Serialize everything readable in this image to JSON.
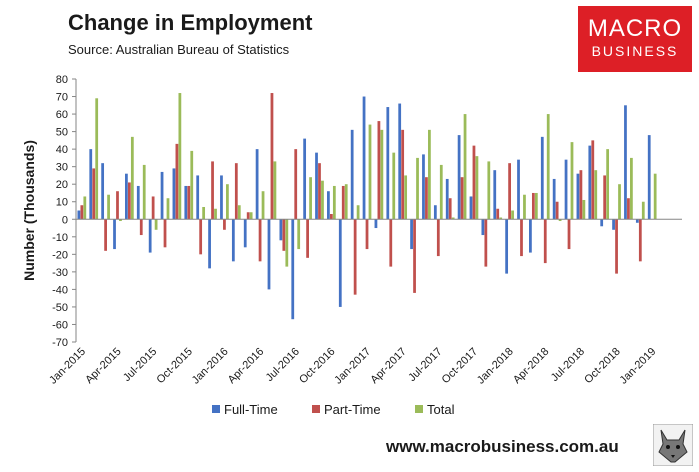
{
  "header": {
    "title": "Change in Employment",
    "source": "Source: Australian Bureau of Statistics"
  },
  "logo": {
    "line1": "MACRO",
    "line2": "BUSINESS"
  },
  "footer": {
    "url": "www.macrobusiness.com.au"
  },
  "chart_data": {
    "type": "bar",
    "title": "Change in Employment",
    "ylabel": "Number (Thousands)",
    "xlabel": "",
    "ylim": [
      -70,
      80
    ],
    "yticks": [
      -70,
      -60,
      -50,
      -40,
      -30,
      -20,
      -10,
      0,
      10,
      20,
      30,
      40,
      50,
      60,
      70,
      80
    ],
    "legend": "bottom",
    "categories": [
      "Jan-2015",
      "Feb-2015",
      "Mar-2015",
      "Apr-2015",
      "May-2015",
      "Jun-2015",
      "Jul-2015",
      "Aug-2015",
      "Sep-2015",
      "Oct-2015",
      "Nov-2015",
      "Dec-2015",
      "Jan-2016",
      "Feb-2016",
      "Mar-2016",
      "Apr-2016",
      "May-2016",
      "Jun-2016",
      "Jul-2016",
      "Aug-2016",
      "Sep-2016",
      "Oct-2016",
      "Nov-2016",
      "Dec-2016",
      "Jan-2017",
      "Feb-2017",
      "Mar-2017",
      "Apr-2017",
      "May-2017",
      "Jun-2017",
      "Jul-2017",
      "Aug-2017",
      "Sep-2017",
      "Oct-2017",
      "Nov-2017",
      "Dec-2017",
      "Jan-2018",
      "Feb-2018",
      "Mar-2018",
      "Apr-2018",
      "May-2018",
      "Jun-2018",
      "Jul-2018",
      "Aug-2018",
      "Sep-2018",
      "Oct-2018",
      "Nov-2018",
      "Dec-2018",
      "Jan-2019",
      "Feb-2019",
      "Mar-2019"
    ],
    "tick_labels": [
      "Jan-2015",
      "Apr-2015",
      "Jul-2015",
      "Oct-2015",
      "Jan-2016",
      "Apr-2016",
      "Jul-2016",
      "Oct-2016",
      "Jan-2017",
      "Apr-2017",
      "Jul-2017",
      "Oct-2017",
      "Jan-2018",
      "Apr-2018",
      "Jul-2018",
      "Oct-2018",
      "Jan-2019"
    ],
    "series": [
      {
        "name": "Full-Time",
        "color": "#4472c4",
        "values": [
          5,
          40,
          32,
          -17,
          26,
          19,
          -19,
          27,
          29,
          19,
          25,
          -28,
          25,
          -24,
          -16,
          40,
          -40,
          -12,
          -57,
          46,
          38,
          16,
          -50,
          51,
          70,
          -5,
          64,
          66,
          -17,
          37,
          8,
          23,
          48,
          13,
          -9,
          28,
          -31,
          34,
          -19,
          47,
          23,
          34,
          26,
          42,
          -4,
          -6,
          65,
          -2,
          48,
          0,
          0
        ]
      },
      {
        "name": "Part-Time",
        "color": "#c0504d",
        "values": [
          8,
          29,
          -18,
          16,
          21,
          -9,
          13,
          -16,
          43,
          19,
          -20,
          33,
          -6,
          32,
          4,
          -24,
          72,
          -18,
          40,
          -22,
          32,
          3,
          19,
          -43,
          -17,
          56,
          -27,
          51,
          -42,
          24,
          -21,
          12,
          24,
          42,
          -27,
          6,
          32,
          -21,
          15,
          -25,
          10,
          -17,
          28,
          45,
          25,
          -31,
          12,
          -24,
          0,
          0,
          0
        ]
      },
      {
        "name": "Total",
        "color": "#9bbb59",
        "values": [
          13,
          69,
          14,
          -1,
          47,
          31,
          -6,
          12,
          72,
          39,
          7,
          6,
          20,
          8,
          4,
          16,
          33,
          -27,
          -17,
          24,
          22,
          19,
          20,
          8,
          54,
          51,
          38,
          25,
          35,
          51,
          31,
          1,
          60,
          36,
          33,
          1,
          5,
          14,
          15,
          60,
          -1,
          44,
          11,
          28,
          40,
          20,
          35,
          10,
          26,
          0,
          0
        ]
      }
    ]
  }
}
